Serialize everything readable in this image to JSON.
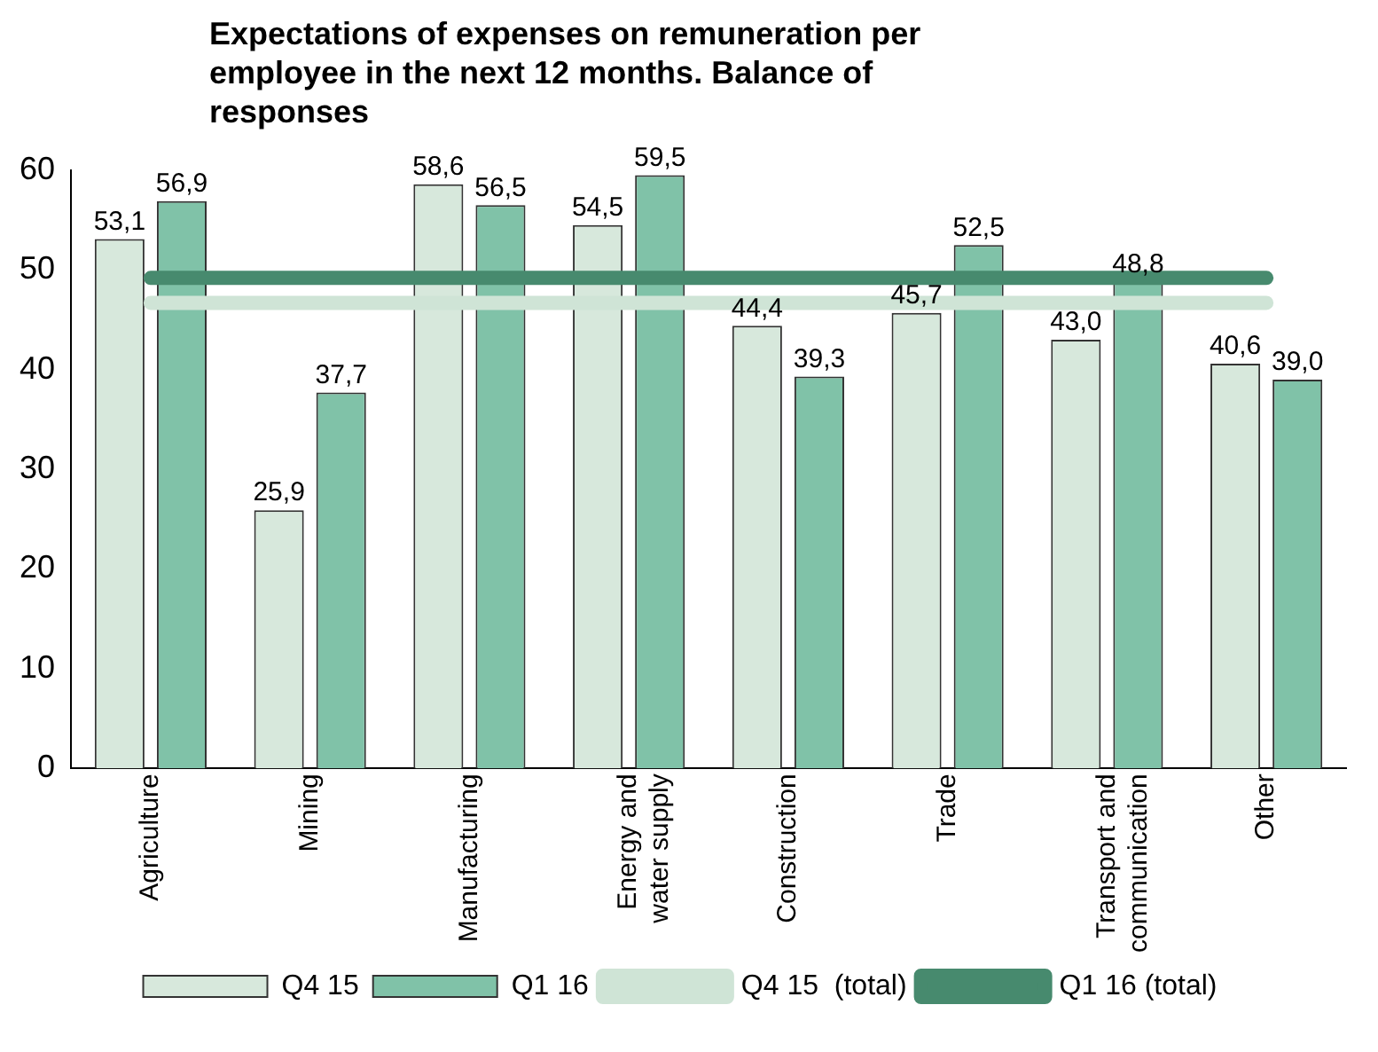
{
  "chart_data": {
    "type": "bar",
    "title": "Expectations of expenses on remuneration per employee  in the next 12 months. Balance of responses",
    "categories": [
      "Agriculture",
      "Mining",
      "Manufacturing",
      "Energy and water supply",
      "Construction",
      "Trade",
      "Transport and communication",
      "Other"
    ],
    "series": [
      {
        "name": "Q4 15",
        "color": "#d7e8dc",
        "values": [
          53.1,
          25.9,
          58.6,
          54.5,
          44.4,
          45.7,
          43.0,
          40.6
        ],
        "value_labels": [
          "53,1",
          "25,9",
          "58,6",
          "54,5",
          "44,4",
          "45,7",
          "43,0",
          "40,6"
        ]
      },
      {
        "name": "Q1 16",
        "color": "#80c2a8",
        "values": [
          56.9,
          37.7,
          56.5,
          59.5,
          39.3,
          52.5,
          48.8,
          39.0
        ],
        "value_labels": [
          "56,9",
          "37,7",
          "56,5",
          "59,5",
          "39,3",
          "52,5",
          "48,8",
          "39,0"
        ]
      },
      {
        "name": "Q4 15  (total)",
        "type": "line",
        "color": "#cfe4d6",
        "values": [
          46.7,
          46.7,
          46.7,
          46.7,
          46.7,
          46.7,
          46.7,
          46.7
        ]
      },
      {
        "name": "Q1 16 (total)",
        "type": "line",
        "color": "#478a6e",
        "values": [
          49.2,
          49.2,
          49.2,
          49.2,
          49.2,
          49.2,
          49.2,
          49.2
        ]
      }
    ],
    "ylim": [
      0,
      60
    ],
    "yticks": [
      0,
      10,
      20,
      30,
      40,
      50,
      60
    ],
    "grid": false,
    "legend": "bottom"
  }
}
